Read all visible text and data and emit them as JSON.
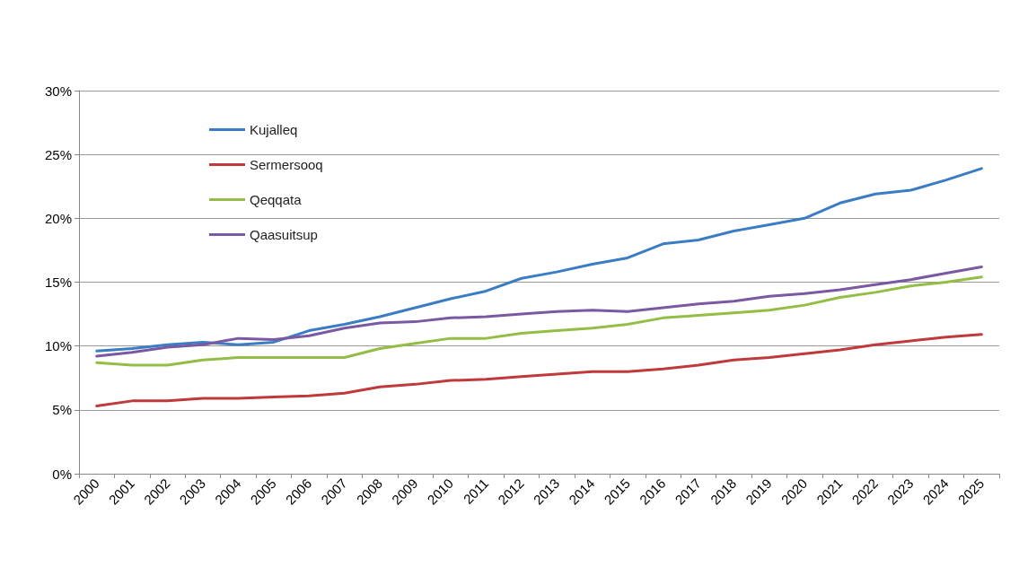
{
  "chart_data": {
    "type": "line",
    "categories": [
      "2000",
      "2001",
      "2002",
      "2003",
      "2004",
      "2005",
      "2006",
      "2007",
      "2008",
      "2009",
      "2010",
      "2011",
      "2012",
      "2013",
      "2014",
      "2015",
      "2016",
      "2017",
      "2018",
      "2019",
      "2020",
      "2021",
      "2022",
      "2023",
      "2024",
      "2025"
    ],
    "series": [
      {
        "name": "Kujalleq",
        "color": "#3a7dc4",
        "values": [
          9.6,
          9.8,
          10.1,
          10.3,
          10.1,
          10.3,
          11.2,
          11.7,
          12.3,
          13.0,
          13.7,
          14.3,
          15.3,
          15.8,
          16.4,
          16.9,
          18.0,
          18.3,
          19.0,
          19.5,
          20.0,
          21.2,
          21.9,
          22.2,
          23.0,
          23.9
        ]
      },
      {
        "name": "Sermersooq",
        "color": "#c0393b",
        "values": [
          5.3,
          5.7,
          5.7,
          5.9,
          5.9,
          6.0,
          6.1,
          6.3,
          6.8,
          7.0,
          7.3,
          7.4,
          7.6,
          7.8,
          8.0,
          8.0,
          8.2,
          8.5,
          8.9,
          9.1,
          9.4,
          9.7,
          10.1,
          10.4,
          10.7,
          10.9
        ]
      },
      {
        "name": "Qeqqata",
        "color": "#93bd45",
        "values": [
          8.7,
          8.5,
          8.5,
          8.9,
          9.1,
          9.1,
          9.1,
          9.1,
          9.8,
          10.2,
          10.6,
          10.6,
          11.0,
          11.2,
          11.4,
          11.7,
          12.2,
          12.4,
          12.6,
          12.8,
          13.2,
          13.8,
          14.2,
          14.7,
          15.0,
          15.4
        ]
      },
      {
        "name": "Qaasuitsup",
        "color": "#7b58a2",
        "values": [
          9.2,
          9.5,
          9.9,
          10.1,
          10.6,
          10.5,
          10.8,
          11.4,
          11.8,
          11.9,
          12.2,
          12.3,
          12.5,
          12.7,
          12.8,
          12.7,
          13.0,
          13.3,
          13.5,
          13.9,
          14.1,
          14.4,
          14.8,
          15.2,
          15.7,
          16.2
        ]
      }
    ],
    "ylim": [
      0,
      30
    ],
    "yticks": [
      {
        "value": 0,
        "label": "0%"
      },
      {
        "value": 5,
        "label": "5%"
      },
      {
        "value": 10,
        "label": "10%"
      },
      {
        "value": 15,
        "label": "15%"
      },
      {
        "value": 20,
        "label": "20%"
      },
      {
        "value": 25,
        "label": "25%"
      },
      {
        "value": 30,
        "label": "30%"
      }
    ],
    "grid": "y",
    "legend": "top left",
    "marker": "none",
    "line_style": "solid"
  }
}
